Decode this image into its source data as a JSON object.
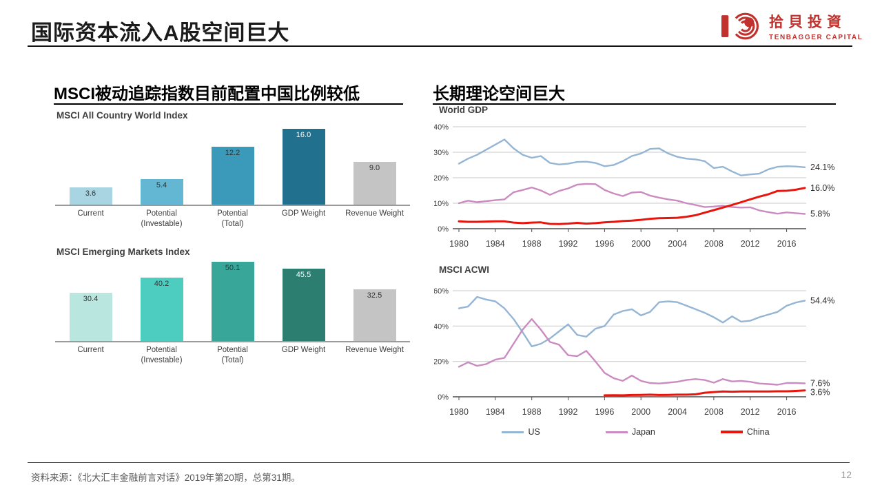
{
  "slide": {
    "title": "国际资本流入A股空间巨大",
    "page_number": "12",
    "source": "资料来源：《北大汇丰金融前言对话》2019年第20期，总第31期。"
  },
  "logo": {
    "cn": "拾貝投資",
    "en": "TENBAGGER CAPITAL",
    "color": "#c1322e"
  },
  "sections": {
    "left_header": "MSCI被动追踪指数目前配置中国比例较低",
    "right_header": "长期理论空间巨大"
  },
  "legend": {
    "items": [
      {
        "label": "US",
        "color": "#94b5d3"
      },
      {
        "label": "Japan",
        "color": "#ca8bc1"
      },
      {
        "label": "China",
        "color": "#e8150c"
      }
    ]
  },
  "chart_data": [
    {
      "type": "bar",
      "title": "MSCI All Country World Index",
      "categories": [
        "Current",
        "Potential\n(Investable)",
        "Potential\n(Total)",
        "GDP Weight",
        "Revenue Weight"
      ],
      "values": [
        3.6,
        5.4,
        12.2,
        16.0,
        9.0
      ],
      "bar_colors": [
        "#a9d5e3",
        "#63b7d3",
        "#3b9ab9",
        "#21708e",
        "#c4c4c4"
      ],
      "ylim": [
        0,
        18
      ],
      "grid": false
    },
    {
      "type": "bar",
      "title": "MSCI Emerging Markets Index",
      "categories": [
        "Current",
        "Potential\n(Investable)",
        "Potential\n(Total)",
        "GDP Weight",
        "Revenue Weight"
      ],
      "values": [
        30.4,
        40.2,
        50.1,
        45.5,
        32.5
      ],
      "bar_colors": [
        "#b9e6df",
        "#4dcdc0",
        "#38a79a",
        "#2c7e71",
        "#c4c4c4"
      ],
      "ylim": [
        0,
        55
      ],
      "grid": false
    },
    {
      "type": "line",
      "title": "World GDP",
      "x_range": [
        1980,
        2018
      ],
      "x_ticks": [
        1980,
        1984,
        1988,
        1992,
        1996,
        2000,
        2004,
        2008,
        2012,
        2016
      ],
      "y_ticks": [
        0,
        10,
        20,
        30,
        40
      ],
      "ylim": [
        0,
        40
      ],
      "grid": true,
      "legend_position": "none",
      "series": [
        {
          "name": "US",
          "color": "#94b5d3",
          "end_label": "24.1%",
          "values": [
            25.5,
            27.5,
            29,
            31,
            33,
            35,
            31.5,
            29,
            27.8,
            28.5,
            25.8,
            25.2,
            25.5,
            26.2,
            26.3,
            25.8,
            24.5,
            25,
            26.5,
            28.5,
            29.5,
            31.3,
            31.5,
            29.5,
            28.2,
            27.5,
            27.2,
            26.5,
            23.8,
            24.3,
            22.5,
            20.9,
            21.3,
            21.6,
            23.3,
            24.3,
            24.5,
            24.4,
            24.1
          ]
        },
        {
          "name": "Japan",
          "color": "#ca8bc1",
          "end_label": "5.8%",
          "values": [
            10,
            11,
            10.4,
            10.8,
            11.2,
            11.5,
            14.3,
            15.2,
            16.2,
            15,
            13.3,
            14.8,
            15.8,
            17.3,
            17.6,
            17.5,
            15.2,
            13.8,
            12.8,
            14.2,
            14.4,
            13,
            12.2,
            11.5,
            11,
            10,
            9.3,
            8.5,
            8.7,
            9,
            8.5,
            8.3,
            8.4,
            7.2,
            6.5,
            5.9,
            6.4,
            6.1,
            5.8
          ]
        },
        {
          "name": "China",
          "color": "#e8150c",
          "end_label": "16.0%",
          "values": [
            2.9,
            2.7,
            2.7,
            2.8,
            2.9,
            2.9,
            2.4,
            2.2,
            2.4,
            2.5,
            1.9,
            1.8,
            2.0,
            2.3,
            2.0,
            2.2,
            2.5,
            2.7,
            3.0,
            3.2,
            3.5,
            3.9,
            4.1,
            4.2,
            4.3,
            4.7,
            5.3,
            6.3,
            7.3,
            8.3,
            9.3,
            10.4,
            11.5,
            12.6,
            13.5,
            14.8,
            14.9,
            15.3,
            16.0
          ]
        }
      ]
    },
    {
      "type": "line",
      "title": "MSCI ACWI",
      "x_range": [
        1980,
        2018
      ],
      "x_ticks": [
        1980,
        1984,
        1988,
        1992,
        1996,
        2000,
        2004,
        2008,
        2012,
        2016
      ],
      "y_ticks": [
        0,
        20,
        40,
        60
      ],
      "ylim": [
        0,
        60
      ],
      "grid": true,
      "legend_position": "bottom",
      "series": [
        {
          "name": "US",
          "color": "#94b5d3",
          "end_label": "54.4%",
          "values": [
            50,
            51,
            56.5,
            55,
            54,
            50,
            44,
            36.5,
            28.5,
            30,
            33,
            37,
            41,
            35,
            34,
            38.5,
            40,
            46.5,
            48.5,
            49.5,
            46,
            48,
            53.5,
            54,
            53.5,
            51.5,
            49.5,
            47.5,
            45,
            42,
            45.5,
            42.5,
            43,
            45,
            46.5,
            48,
            51.5,
            53.3,
            54.4
          ]
        },
        {
          "name": "Japan",
          "color": "#ca8bc1",
          "end_label": "7.6%",
          "values": [
            17,
            19.5,
            17.5,
            18.5,
            21,
            22,
            30,
            38,
            44,
            38,
            31,
            29.5,
            23.5,
            23,
            26,
            20,
            13.5,
            10.5,
            9,
            12,
            9,
            7.8,
            7.5,
            8,
            8.5,
            9.5,
            10,
            9.5,
            8,
            10,
            8.7,
            9,
            8.5,
            7.5,
            7.2,
            6.8,
            7.8,
            7.8,
            7.6
          ]
        },
        {
          "name": "China",
          "color": "#e8150c",
          "end_label": "3.6%",
          "values": [
            null,
            null,
            null,
            null,
            null,
            null,
            null,
            null,
            null,
            null,
            null,
            null,
            null,
            null,
            null,
            null,
            0.8,
            0.9,
            0.8,
            1.0,
            1.1,
            1.2,
            1.0,
            1.1,
            1.2,
            1.2,
            1.4,
            2.3,
            2.7,
            3.0,
            2.9,
            3.0,
            3.0,
            3.0,
            3.0,
            3.1,
            3.1,
            3.3,
            3.6
          ]
        }
      ]
    }
  ]
}
